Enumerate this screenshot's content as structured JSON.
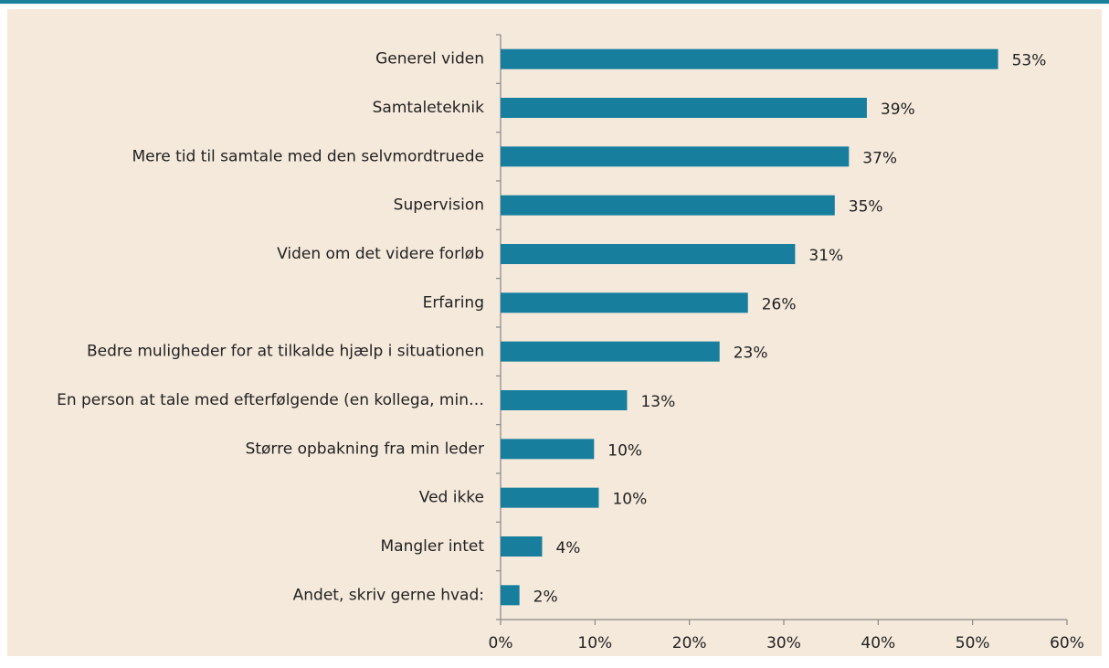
{
  "chart_data": {
    "type": "barh",
    "categories": [
      "Generel viden",
      "Samtaleteknik",
      "Mere tid til samtale med den selvmordtruede",
      "Supervision",
      "Viden om det videre forløb",
      "Erfaring",
      "Bedre muligheder for at tilkalde hjælp i situationen",
      "En person at tale med efterfølgende (en kollega, min…",
      "Større opbakning fra min leder",
      "Ved ikke",
      "Mangler intet",
      "Andet, skriv gerne hvad:"
    ],
    "values": [
      52.7,
      38.8,
      36.9,
      35.4,
      31.2,
      26.2,
      23.2,
      13.4,
      9.9,
      10.4,
      4.4,
      2.0
    ],
    "value_labels": [
      "53%",
      "39%",
      "37%",
      "35%",
      "31%",
      "26%",
      "23%",
      "13%",
      "10%",
      "10%",
      "4%",
      "2%"
    ],
    "color": "#177f9d",
    "xlim": [
      0,
      60
    ],
    "xticks": [
      {
        "value": 0,
        "label": "0%"
      },
      {
        "value": 10,
        "label": "10%"
      },
      {
        "value": 20,
        "label": "20%"
      },
      {
        "value": 30,
        "label": "30%"
      },
      {
        "value": 40,
        "label": "40%"
      },
      {
        "value": 50,
        "label": "50%"
      },
      {
        "value": 60,
        "label": "60%"
      }
    ]
  }
}
